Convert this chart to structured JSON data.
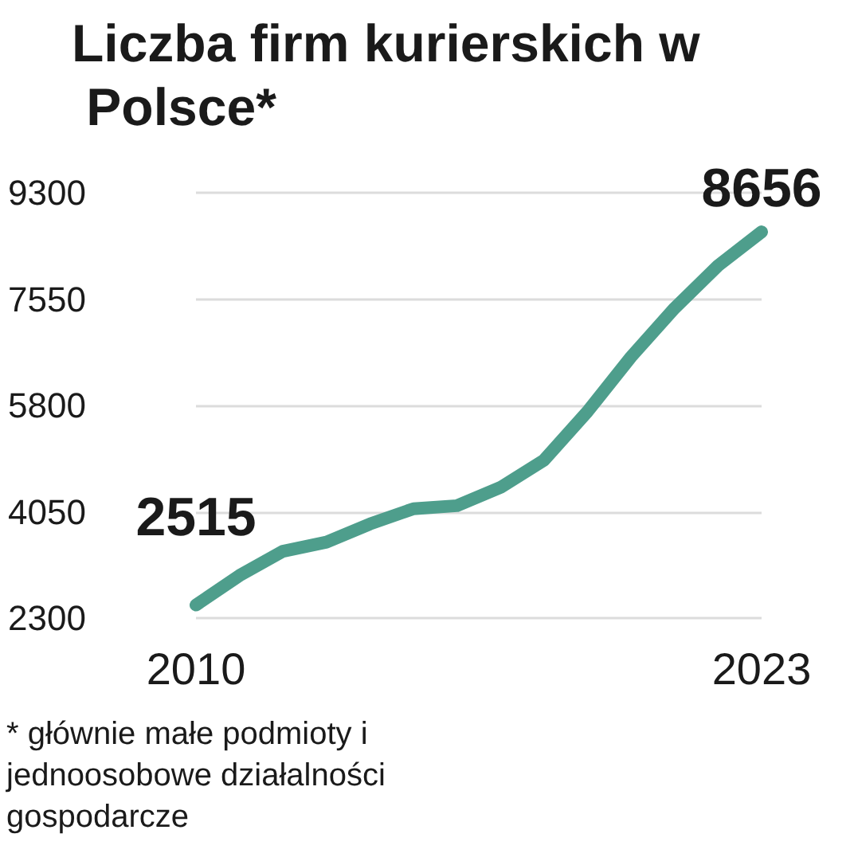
{
  "chart_data": {
    "type": "line",
    "title": "Liczba firm kurierskich w Polsce*",
    "categories": [
      "2010",
      null,
      null,
      null,
      null,
      null,
      null,
      null,
      null,
      null,
      null,
      null,
      null,
      "2023"
    ],
    "series": [
      {
        "color": "#4e9e8c",
        "values": [
          2515,
          3000,
          3400,
          3550,
          3850,
          4100,
          4150,
          4450,
          4900,
          5700,
          6600,
          7400,
          8100,
          8656
        ],
        "value_labels": [
          "2515",
          null,
          null,
          null,
          null,
          null,
          null,
          null,
          null,
          null,
          null,
          null,
          null,
          "8656"
        ]
      }
    ],
    "ylim": [
      2300,
      9300
    ],
    "yticks": [
      2300,
      4050,
      5800,
      7550,
      9300
    ],
    "grid": "y",
    "marker": "none",
    "line_style": "solid",
    "annotations": [
      "* głównie małe podmioty i jednoosobowe działalności gospodarcze"
    ]
  }
}
